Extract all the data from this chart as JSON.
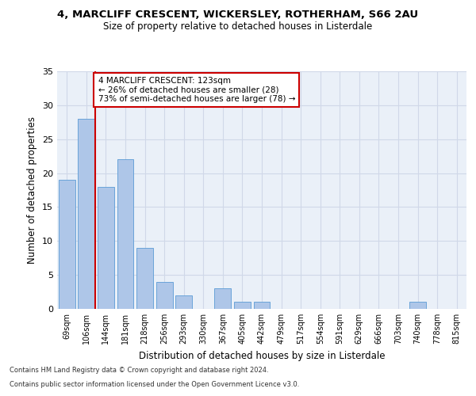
{
  "title1": "4, MARCLIFF CRESCENT, WICKERSLEY, ROTHERHAM, S66 2AU",
  "title2": "Size of property relative to detached houses in Listerdale",
  "xlabel": "Distribution of detached houses by size in Listerdale",
  "ylabel": "Number of detached properties",
  "bar_labels": [
    "69sqm",
    "106sqm",
    "144sqm",
    "181sqm",
    "218sqm",
    "256sqm",
    "293sqm",
    "330sqm",
    "367sqm",
    "405sqm",
    "442sqm",
    "479sqm",
    "517sqm",
    "554sqm",
    "591sqm",
    "629sqm",
    "666sqm",
    "703sqm",
    "740sqm",
    "778sqm",
    "815sqm"
  ],
  "bar_values": [
    19,
    28,
    18,
    22,
    9,
    4,
    2,
    0,
    3,
    1,
    1,
    0,
    0,
    0,
    0,
    0,
    0,
    0,
    1,
    0,
    0
  ],
  "bar_color": "#aec6e8",
  "bar_edge_color": "#5b9bd5",
  "grid_color": "#d0d8e8",
  "background_color": "#eaf0f8",
  "marker_color": "#cc0000",
  "annotation_text": "4 MARCLIFF CRESCENT: 123sqm\n← 26% of detached houses are smaller (28)\n73% of semi-detached houses are larger (78) →",
  "annotation_box_color": "#ffffff",
  "annotation_border_color": "#cc0000",
  "ylim": [
    0,
    35
  ],
  "yticks": [
    0,
    5,
    10,
    15,
    20,
    25,
    30,
    35
  ],
  "footer1": "Contains HM Land Registry data © Crown copyright and database right 2024.",
  "footer2": "Contains public sector information licensed under the Open Government Licence v3.0."
}
